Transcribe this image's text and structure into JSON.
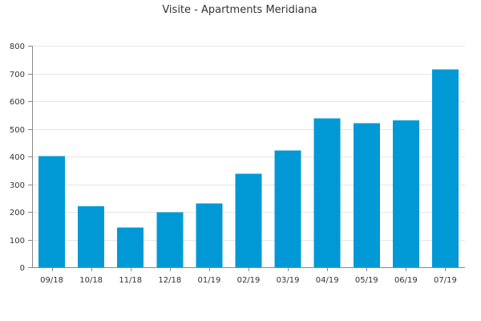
{
  "chart_data": {
    "type": "bar",
    "title": "Visite - Apartments Meridiana",
    "xlabel": "",
    "ylabel": "",
    "categories": [
      "09/18",
      "10/18",
      "11/18",
      "12/18",
      "01/19",
      "02/19",
      "03/19",
      "04/19",
      "05/19",
      "06/19",
      "07/19"
    ],
    "series": [
      {
        "values": [
          402,
          221,
          143,
          198,
          230,
          338,
          422,
          538,
          521,
          530,
          715
        ],
        "color": "#0099d6"
      }
    ],
    "ylim": [
      0,
      800
    ],
    "yticks": [
      0,
      100,
      200,
      300,
      400,
      500,
      600,
      700,
      800
    ],
    "grid": true,
    "legend": "none"
  }
}
